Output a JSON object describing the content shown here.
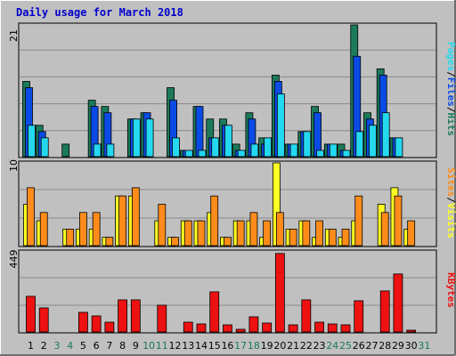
{
  "title": "Daily usage for March 2018",
  "colors": {
    "hits": "#1b7a5a",
    "files": "#0a4be6",
    "pages": "#24d8f0",
    "visits": "#ff8c1a",
    "sites": "#ffff22",
    "kbytes": "#ee1111",
    "weekday_label": "#000000",
    "weekend_label": "#1b7a5a"
  },
  "chart_data": [
    {
      "type": "bar",
      "name": "hits-files-pages",
      "categories": [
        "1",
        "2",
        "3",
        "4",
        "5",
        "6",
        "7",
        "8",
        "9",
        "10",
        "11",
        "12",
        "13",
        "14",
        "15",
        "16",
        "17",
        "18",
        "19",
        "20",
        "21",
        "22",
        "23",
        "24",
        "25",
        "26",
        "27",
        "28",
        "29",
        "30",
        "31"
      ],
      "ymax_label": "21",
      "ylim": [
        0,
        21
      ],
      "right_labels": [
        "Pages",
        "/",
        "Files",
        "/",
        "Hits"
      ],
      "series": [
        {
          "name": "Hits",
          "values": [
            12,
            5,
            0,
            2,
            0,
            9,
            8,
            0,
            6,
            7,
            0,
            11,
            1,
            8,
            6,
            6,
            2,
            7,
            3,
            13,
            2,
            4,
            8,
            2,
            2,
            21,
            7,
            14,
            3,
            0,
            0
          ]
        },
        {
          "name": "Files",
          "values": [
            11,
            4,
            0,
            0,
            0,
            8,
            7,
            0,
            6,
            7,
            0,
            9,
            1,
            8,
            3,
            5,
            1,
            6,
            2,
            12,
            2,
            4,
            7,
            2,
            1,
            16,
            6,
            13,
            3,
            0,
            0
          ]
        },
        {
          "name": "Pages",
          "values": [
            5,
            3,
            0,
            0,
            0,
            2,
            2,
            0,
            6,
            6,
            0,
            3,
            1,
            1,
            3,
            5,
            1,
            2,
            3,
            10,
            2,
            4,
            1,
            2,
            1,
            4,
            5,
            7,
            3,
            0,
            0
          ]
        }
      ]
    },
    {
      "type": "bar",
      "name": "visits-sites",
      "categories": [
        "1",
        "2",
        "3",
        "4",
        "5",
        "6",
        "7",
        "8",
        "9",
        "10",
        "11",
        "12",
        "13",
        "14",
        "15",
        "16",
        "17",
        "18",
        "19",
        "20",
        "21",
        "22",
        "23",
        "24",
        "25",
        "26",
        "27",
        "28",
        "29",
        "30",
        "31"
      ],
      "ymax_label": "10",
      "ylim": [
        0,
        10
      ],
      "right_labels": [
        "Sites",
        "/",
        "Visits"
      ],
      "series": [
        {
          "name": "Visits",
          "values": [
            7,
            4,
            0,
            2,
            4,
            4,
            1,
            6,
            7,
            0,
            5,
            1,
            3,
            3,
            6,
            1,
            3,
            4,
            3,
            4,
            2,
            3,
            3,
            2,
            2,
            6,
            0,
            4,
            6,
            3,
            0
          ]
        },
        {
          "name": "Sites",
          "values": [
            5,
            3,
            0,
            2,
            2,
            2,
            1,
            6,
            6,
            0,
            3,
            1,
            3,
            3,
            4,
            1,
            3,
            3,
            1,
            10,
            2,
            3,
            1,
            2,
            1,
            3,
            0,
            5,
            7,
            2,
            0
          ]
        }
      ]
    },
    {
      "type": "bar",
      "name": "kbytes",
      "categories": [
        "1",
        "2",
        "3",
        "4",
        "5",
        "6",
        "7",
        "8",
        "9",
        "10",
        "11",
        "12",
        "13",
        "14",
        "15",
        "16",
        "17",
        "18",
        "19",
        "20",
        "21",
        "22",
        "23",
        "24",
        "25",
        "26",
        "27",
        "28",
        "29",
        "30",
        "31"
      ],
      "ymax_label": "449",
      "ylim": [
        0,
        449
      ],
      "right_labels": [
        "KBytes"
      ],
      "series": [
        {
          "name": "KBytes",
          "values": [
            200,
            135,
            0,
            0,
            110,
            90,
            55,
            180,
            180,
            0,
            150,
            0,
            55,
            45,
            225,
            40,
            15,
            85,
            50,
            440,
            40,
            180,
            55,
            45,
            40,
            175,
            0,
            230,
            325,
            5,
            0
          ]
        }
      ]
    }
  ],
  "x_labels": {
    "days": [
      "1",
      "2",
      "3",
      "4",
      "5",
      "6",
      "7",
      "8",
      "9",
      "10",
      "11",
      "12",
      "13",
      "14",
      "15",
      "16",
      "17",
      "18",
      "19",
      "20",
      "21",
      "22",
      "23",
      "24",
      "25",
      "26",
      "27",
      "28",
      "29",
      "30",
      "31"
    ],
    "weekend_days": [
      "3",
      "4",
      "10",
      "11",
      "17",
      "18",
      "24",
      "25",
      "31"
    ]
  }
}
